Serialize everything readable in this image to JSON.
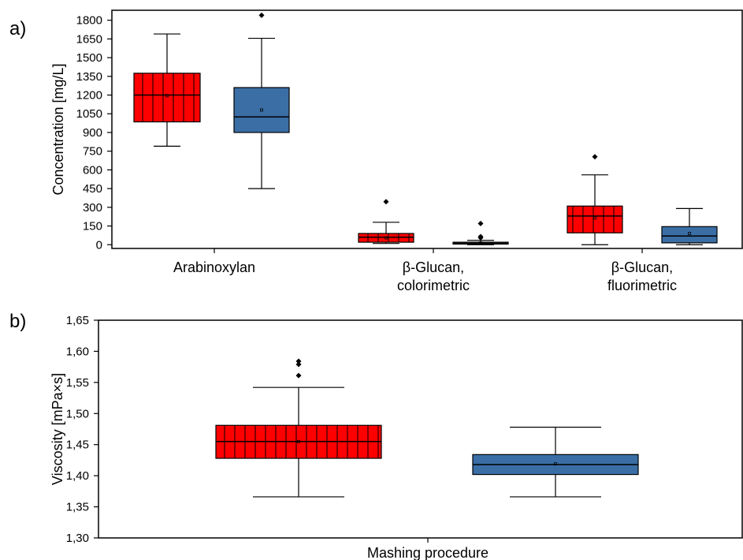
{
  "chart_data": [
    {
      "type": "box",
      "panel_label": "a)",
      "ylabel": "Concentration [mg/L]",
      "ylim": [
        -30,
        1880
      ],
      "yticks": [
        "0",
        "150",
        "300",
        "450",
        "600",
        "750",
        "900",
        "1050",
        "1200",
        "1350",
        "1500",
        "1650",
        "1800"
      ],
      "categories": [
        {
          "lines": [
            "Arabinoxylan"
          ]
        },
        {
          "lines": [
            "β-Glucan,",
            "colorimetric"
          ]
        },
        {
          "lines": [
            "β-Glucan,",
            "fluorimetric"
          ]
        }
      ],
      "series": [
        {
          "color": "#ff0000",
          "pattern": "vertical-lines",
          "boxes": [
            {
              "min": 790,
              "q1": 985,
              "median": 1200,
              "mean": 1195,
              "q3": 1375,
              "max": 1690,
              "outliers": []
            },
            {
              "min": 10,
              "q1": 20,
              "median": 60,
              "mean": 55,
              "q3": 90,
              "max": 180,
              "outliers": [
                345
              ]
            },
            {
              "min": 0,
              "q1": 95,
              "median": 230,
              "mean": 215,
              "q3": 310,
              "max": 560,
              "outliers": [
                705
              ]
            }
          ]
        },
        {
          "color": "#3a6ea5",
          "pattern": "solid",
          "boxes": [
            {
              "min": 450,
              "q1": 900,
              "median": 1025,
              "mean": 1080,
              "q3": 1260,
              "max": 1655,
              "outliers": [
                1840
              ]
            },
            {
              "min": 0,
              "q1": 5,
              "median": 12,
              "mean": 14,
              "q3": 20,
              "max": 35,
              "outliers": [
                55,
                65,
                170
              ]
            },
            {
              "min": 0,
              "q1": 15,
              "median": 70,
              "mean": 90,
              "q3": 145,
              "max": 290,
              "outliers": []
            }
          ]
        }
      ]
    },
    {
      "type": "box",
      "panel_label": "b)",
      "ylabel": "Viscosity [mPa×s]",
      "xlabel": "Mashing procedure",
      "ylim": [
        1.3,
        1.65
      ],
      "yticks": [
        "1,30",
        "1,35",
        "1,40",
        "1,45",
        "1,50",
        "1,55",
        "1,60",
        "1,65"
      ],
      "series": [
        {
          "color": "#ff0000",
          "pattern": "vertical-lines",
          "boxes": [
            {
              "min": 1.366,
              "q1": 1.428,
              "median": 1.455,
              "mean": 1.455,
              "q3": 1.481,
              "max": 1.542,
              "outliers": [
                1.561,
                1.579,
                1.584
              ]
            }
          ]
        },
        {
          "color": "#3a6ea5",
          "pattern": "solid",
          "boxes": [
            {
              "min": 1.366,
              "q1": 1.402,
              "median": 1.418,
              "mean": 1.419,
              "q3": 1.434,
              "max": 1.478,
              "outliers": []
            }
          ]
        }
      ]
    }
  ]
}
